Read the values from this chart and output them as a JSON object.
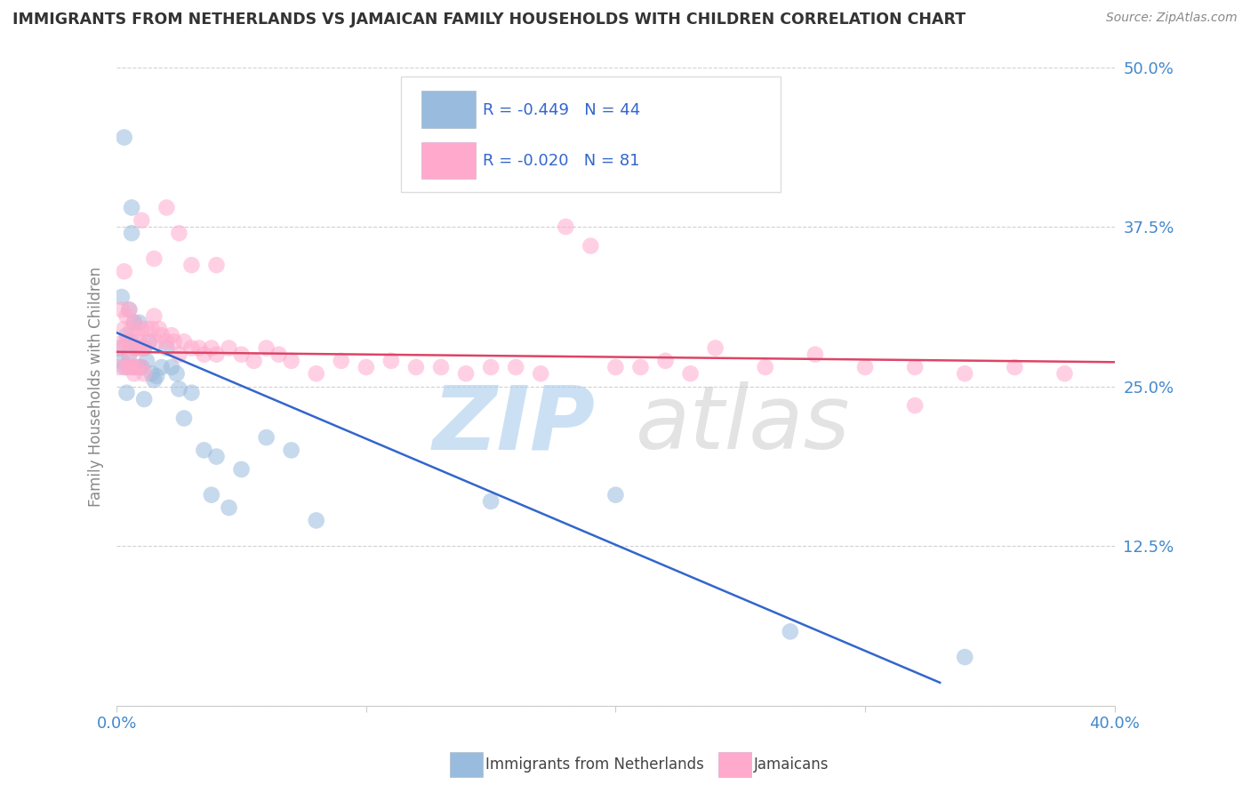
{
  "title": "IMMIGRANTS FROM NETHERLANDS VS JAMAICAN FAMILY HOUSEHOLDS WITH CHILDREN CORRELATION CHART",
  "source": "Source: ZipAtlas.com",
  "ylabel_label": "Family Households with Children",
  "xlabel_label": "Immigrants from Netherlands",
  "yticks": [
    0.0,
    0.125,
    0.25,
    0.375,
    0.5
  ],
  "ytick_labels": [
    "",
    "12.5%",
    "25.0%",
    "37.5%",
    "50.0%"
  ],
  "xtick_vals": [
    0.0,
    0.1,
    0.2,
    0.3,
    0.4
  ],
  "xlim": [
    0.0,
    0.4
  ],
  "ylim": [
    0.0,
    0.5
  ],
  "legend_label1": "Immigrants from Netherlands",
  "legend_label2": "Jamaicans",
  "R1": -0.449,
  "N1": 44,
  "R2": -0.02,
  "N2": 81,
  "blue_color": "#99bbdd",
  "pink_color": "#ffaacc",
  "blue_line_color": "#3366cc",
  "pink_line_color": "#dd4466",
  "watermark_zip_color": "#aaccee",
  "watermark_atlas_color": "#cccccc",
  "background_color": "#ffffff",
  "grid_color": "#cccccc",
  "tick_label_color": "#4488cc",
  "title_color": "#333333",
  "source_color": "#888888",
  "ylabel_color": "#888888",
  "blue_scatter_x": [
    0.001,
    0.002,
    0.002,
    0.003,
    0.003,
    0.004,
    0.004,
    0.005,
    0.005,
    0.006,
    0.006,
    0.006,
    0.007,
    0.007,
    0.008,
    0.009,
    0.009,
    0.01,
    0.011,
    0.011,
    0.012,
    0.013,
    0.014,
    0.015,
    0.016,
    0.018,
    0.02,
    0.022,
    0.024,
    0.025,
    0.027,
    0.03,
    0.035,
    0.038,
    0.04,
    0.045,
    0.05,
    0.06,
    0.07,
    0.08,
    0.15,
    0.2,
    0.27,
    0.34
  ],
  "blue_scatter_y": [
    0.28,
    0.32,
    0.27,
    0.265,
    0.445,
    0.29,
    0.245,
    0.31,
    0.275,
    0.39,
    0.285,
    0.37,
    0.3,
    0.265,
    0.28,
    0.3,
    0.265,
    0.265,
    0.28,
    0.24,
    0.27,
    0.285,
    0.26,
    0.255,
    0.258,
    0.265,
    0.28,
    0.265,
    0.26,
    0.248,
    0.225,
    0.245,
    0.2,
    0.165,
    0.195,
    0.155,
    0.185,
    0.21,
    0.2,
    0.145,
    0.16,
    0.165,
    0.058,
    0.038
  ],
  "pink_scatter_x": [
    0.001,
    0.001,
    0.002,
    0.002,
    0.003,
    0.003,
    0.004,
    0.004,
    0.004,
    0.005,
    0.005,
    0.005,
    0.005,
    0.006,
    0.006,
    0.007,
    0.007,
    0.007,
    0.008,
    0.008,
    0.009,
    0.009,
    0.01,
    0.01,
    0.01,
    0.011,
    0.011,
    0.012,
    0.013,
    0.014,
    0.015,
    0.016,
    0.017,
    0.018,
    0.02,
    0.022,
    0.023,
    0.025,
    0.027,
    0.03,
    0.033,
    0.035,
    0.038,
    0.04,
    0.045,
    0.05,
    0.055,
    0.06,
    0.065,
    0.07,
    0.08,
    0.09,
    0.1,
    0.11,
    0.12,
    0.13,
    0.14,
    0.15,
    0.16,
    0.17,
    0.18,
    0.19,
    0.2,
    0.21,
    0.22,
    0.23,
    0.24,
    0.26,
    0.28,
    0.3,
    0.32,
    0.34,
    0.36,
    0.38,
    0.01,
    0.015,
    0.02,
    0.025,
    0.03,
    0.04,
    0.32
  ],
  "pink_scatter_y": [
    0.283,
    0.265,
    0.31,
    0.28,
    0.34,
    0.295,
    0.305,
    0.265,
    0.285,
    0.31,
    0.285,
    0.27,
    0.265,
    0.295,
    0.265,
    0.3,
    0.28,
    0.26,
    0.29,
    0.265,
    0.285,
    0.28,
    0.295,
    0.28,
    0.265,
    0.28,
    0.26,
    0.295,
    0.285,
    0.295,
    0.305,
    0.285,
    0.295,
    0.29,
    0.285,
    0.29,
    0.285,
    0.275,
    0.285,
    0.28,
    0.28,
    0.275,
    0.28,
    0.275,
    0.28,
    0.275,
    0.27,
    0.28,
    0.275,
    0.27,
    0.26,
    0.27,
    0.265,
    0.27,
    0.265,
    0.265,
    0.26,
    0.265,
    0.265,
    0.26,
    0.375,
    0.36,
    0.265,
    0.265,
    0.27,
    0.26,
    0.28,
    0.265,
    0.275,
    0.265,
    0.265,
    0.26,
    0.265,
    0.26,
    0.38,
    0.35,
    0.39,
    0.37,
    0.345,
    0.345,
    0.235
  ]
}
